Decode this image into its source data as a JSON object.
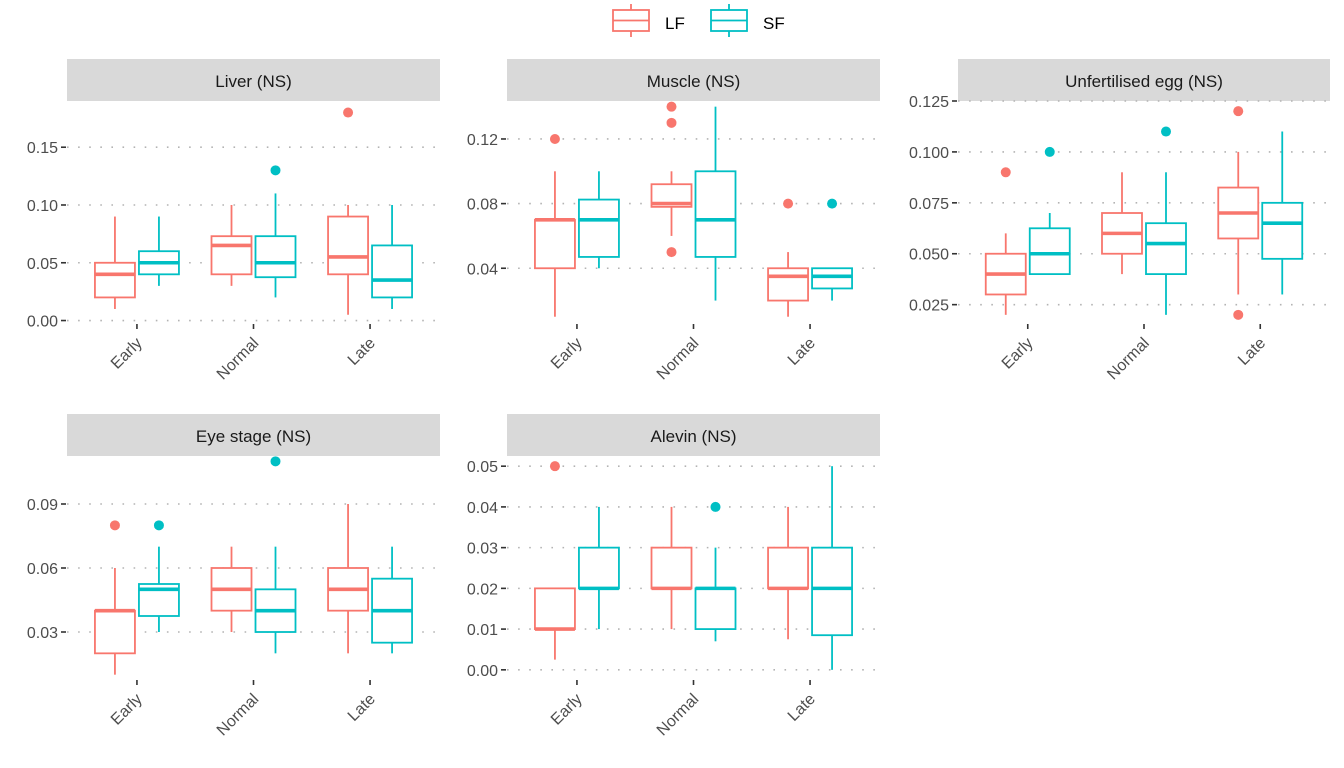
{
  "chart_data": {
    "type": "boxplot",
    "layout": "facet_wrap",
    "legend": {
      "position": "top",
      "entries": [
        {
          "name": "LF",
          "color": "#F8766D"
        },
        {
          "name": "SF",
          "color": "#00BFC4"
        }
      ]
    },
    "categories": [
      "Early",
      "Normal",
      "Late"
    ],
    "series_names": [
      "LF",
      "SF"
    ],
    "grid": "horizontal dotted",
    "panels": [
      {
        "title": "Liver (NS)",
        "ylim": [
          -0.003,
          0.19
        ],
        "yticks": [
          0.0,
          0.05,
          0.1,
          0.15
        ],
        "ytick_labels": [
          "0.00",
          "0.05",
          "0.10",
          "0.15"
        ],
        "boxes": {
          "LF": [
            {
              "category": "Early",
              "lower_whisker": 0.01,
              "q1": 0.02,
              "median": 0.04,
              "q3": 0.05,
              "upper_whisker": 0.09,
              "outliers": []
            },
            {
              "category": "Normal",
              "lower_whisker": 0.03,
              "q1": 0.04,
              "median": 0.065,
              "q3": 0.073,
              "upper_whisker": 0.1,
              "outliers": []
            },
            {
              "category": "Late",
              "lower_whisker": 0.005,
              "q1": 0.04,
              "median": 0.055,
              "q3": 0.09,
              "upper_whisker": 0.1,
              "outliers": [
                0.18
              ]
            }
          ],
          "SF": [
            {
              "category": "Early",
              "lower_whisker": 0.03,
              "q1": 0.04,
              "median": 0.05,
              "q3": 0.06,
              "upper_whisker": 0.09,
              "outliers": []
            },
            {
              "category": "Normal",
              "lower_whisker": 0.02,
              "q1": 0.0375,
              "median": 0.05,
              "q3": 0.073,
              "upper_whisker": 0.11,
              "outliers": [
                0.13
              ]
            },
            {
              "category": "Late",
              "lower_whisker": 0.01,
              "q1": 0.02,
              "median": 0.035,
              "q3": 0.065,
              "upper_whisker": 0.1,
              "outliers": []
            }
          ]
        }
      },
      {
        "title": "Muscle (NS)",
        "ylim": [
          0.0055,
          0.1435
        ],
        "yticks": [
          0.04,
          0.08,
          0.12
        ],
        "ytick_labels": [
          "0.04",
          "0.08",
          "0.12"
        ],
        "boxes": {
          "LF": [
            {
              "category": "Early",
              "lower_whisker": 0.01,
              "q1": 0.04,
              "median": 0.07,
              "q3": 0.07,
              "upper_whisker": 0.1,
              "outliers": [
                0.12
              ]
            },
            {
              "category": "Normal",
              "lower_whisker": 0.06,
              "q1": 0.078,
              "median": 0.08,
              "q3": 0.092,
              "upper_whisker": 0.1,
              "outliers": [
                0.14,
                0.13,
                0.05
              ]
            },
            {
              "category": "Late",
              "lower_whisker": 0.01,
              "q1": 0.02,
              "median": 0.035,
              "q3": 0.04,
              "upper_whisker": 0.05,
              "outliers": [
                0.08
              ]
            }
          ],
          "SF": [
            {
              "category": "Early",
              "lower_whisker": 0.04,
              "q1": 0.047,
              "median": 0.07,
              "q3": 0.0825,
              "upper_whisker": 0.1,
              "outliers": []
            },
            {
              "category": "Normal",
              "lower_whisker": 0.02,
              "q1": 0.047,
              "median": 0.07,
              "q3": 0.1,
              "upper_whisker": 0.14,
              "outliers": []
            },
            {
              "category": "Late",
              "lower_whisker": 0.02,
              "q1": 0.0275,
              "median": 0.035,
              "q3": 0.04,
              "upper_whisker": 0.04,
              "outliers": [
                0.08
              ]
            }
          ]
        }
      },
      {
        "title": "Unfertilised egg (NS)",
        "ylim": [
          0.0155,
          0.125
        ],
        "yticks": [
          0.025,
          0.05,
          0.075,
          0.1,
          0.125
        ],
        "ytick_labels": [
          "0.025",
          "0.050",
          "0.075",
          "0.100",
          "0.125"
        ],
        "boxes": {
          "LF": [
            {
              "category": "Early",
              "lower_whisker": 0.02,
              "q1": 0.03,
              "median": 0.04,
              "q3": 0.05,
              "upper_whisker": 0.06,
              "outliers": [
                0.09
              ]
            },
            {
              "category": "Normal",
              "lower_whisker": 0.04,
              "q1": 0.05,
              "median": 0.06,
              "q3": 0.07,
              "upper_whisker": 0.09,
              "outliers": []
            },
            {
              "category": "Late",
              "lower_whisker": 0.03,
              "q1": 0.0575,
              "median": 0.07,
              "q3": 0.0825,
              "upper_whisker": 0.1,
              "outliers": [
                0.12,
                0.02
              ]
            }
          ],
          "SF": [
            {
              "category": "Early",
              "lower_whisker": 0.04,
              "q1": 0.04,
              "median": 0.05,
              "q3": 0.0625,
              "upper_whisker": 0.07,
              "outliers": [
                0.1
              ]
            },
            {
              "category": "Normal",
              "lower_whisker": 0.02,
              "q1": 0.04,
              "median": 0.055,
              "q3": 0.065,
              "upper_whisker": 0.09,
              "outliers": [
                0.11
              ]
            },
            {
              "category": "Late",
              "lower_whisker": 0.03,
              "q1": 0.0475,
              "median": 0.065,
              "q3": 0.075,
              "upper_whisker": 0.11,
              "outliers": []
            }
          ]
        }
      },
      {
        "title": "Eye stage (NS)",
        "ylim": [
          0.0075,
          0.1125
        ],
        "yticks": [
          0.03,
          0.06,
          0.09
        ],
        "ytick_labels": [
          "0.03",
          "0.06",
          "0.09"
        ],
        "boxes": {
          "LF": [
            {
              "category": "Early",
              "lower_whisker": 0.01,
              "q1": 0.02,
              "median": 0.04,
              "q3": 0.04,
              "upper_whisker": 0.06,
              "outliers": [
                0.08
              ]
            },
            {
              "category": "Normal",
              "lower_whisker": 0.03,
              "q1": 0.04,
              "median": 0.05,
              "q3": 0.06,
              "upper_whisker": 0.07,
              "outliers": []
            },
            {
              "category": "Late",
              "lower_whisker": 0.02,
              "q1": 0.04,
              "median": 0.05,
              "q3": 0.06,
              "upper_whisker": 0.09,
              "outliers": []
            }
          ],
          "SF": [
            {
              "category": "Early",
              "lower_whisker": 0.03,
              "q1": 0.0375,
              "median": 0.05,
              "q3": 0.0525,
              "upper_whisker": 0.07,
              "outliers": [
                0.08
              ]
            },
            {
              "category": "Normal",
              "lower_whisker": 0.02,
              "q1": 0.03,
              "median": 0.04,
              "q3": 0.05,
              "upper_whisker": 0.07,
              "outliers": [
                0.11
              ]
            },
            {
              "category": "Late",
              "lower_whisker": 0.02,
              "q1": 0.025,
              "median": 0.04,
              "q3": 0.055,
              "upper_whisker": 0.07,
              "outliers": []
            }
          ]
        }
      },
      {
        "title": "Alevin (NS)",
        "ylim": [
          -0.0025,
          0.0525
        ],
        "yticks": [
          0.0,
          0.01,
          0.02,
          0.03,
          0.04,
          0.05
        ],
        "ytick_labels": [
          "0.00",
          "0.01",
          "0.02",
          "0.03",
          "0.04",
          "0.05"
        ],
        "boxes": {
          "LF": [
            {
              "category": "Early",
              "lower_whisker": 0.0025,
              "q1": 0.01,
              "median": 0.01,
              "q3": 0.02,
              "upper_whisker": 0.02,
              "outliers": [
                0.05
              ]
            },
            {
              "category": "Normal",
              "lower_whisker": 0.01,
              "q1": 0.02,
              "median": 0.02,
              "q3": 0.03,
              "upper_whisker": 0.04,
              "outliers": []
            },
            {
              "category": "Late",
              "lower_whisker": 0.0075,
              "q1": 0.02,
              "median": 0.02,
              "q3": 0.03,
              "upper_whisker": 0.04,
              "outliers": []
            }
          ],
          "SF": [
            {
              "category": "Early",
              "lower_whisker": 0.01,
              "q1": 0.02,
              "median": 0.02,
              "q3": 0.03,
              "upper_whisker": 0.04,
              "outliers": []
            },
            {
              "category": "Normal",
              "lower_whisker": 0.007,
              "q1": 0.01,
              "median": 0.02,
              "q3": 0.02,
              "upper_whisker": 0.03,
              "outliers": [
                0.04
              ]
            },
            {
              "category": "Late",
              "lower_whisker": 0.0,
              "q1": 0.0085,
              "median": 0.02,
              "q3": 0.03,
              "upper_whisker": 0.05,
              "outliers": []
            }
          ]
        }
      }
    ]
  }
}
